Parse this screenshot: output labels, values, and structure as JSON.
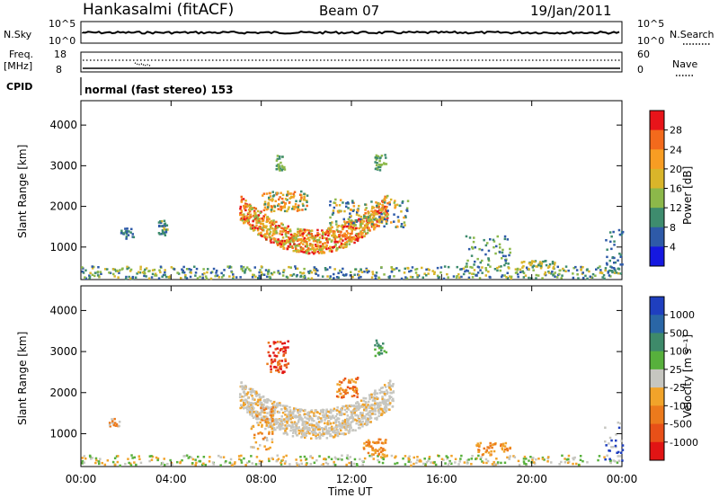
{
  "header": {
    "station": "Hankasalmi (fitACF)",
    "beam": "Beam 07",
    "date": "19/Jan/2011"
  },
  "top_panels": {
    "nsky_label": "N.Sky",
    "nsky_ticks": [
      "10^5",
      "10^0"
    ],
    "nsearch_label": "N.Search",
    "nsearch_ticks": [
      "10^5",
      "10^0"
    ],
    "freq_label_1": "Freq.",
    "freq_label_2": "[MHz]",
    "freq_ticks": [
      "18",
      "8"
    ],
    "nave_label": "Nave",
    "nave_ticks": [
      "60",
      "0"
    ],
    "cpid_label": "CPID",
    "cpid_value": "normal (fast stereo) 153"
  },
  "chart_data": [
    {
      "type": "heatmap",
      "name": "power",
      "ylabel": "Slant Range [km]",
      "yticks": [
        1000,
        2000,
        3000,
        4000
      ],
      "ylim": [
        200,
        4600
      ],
      "xticks": [
        "00:00",
        "04:00",
        "08:00",
        "12:00",
        "16:00",
        "20:00",
        "00:00"
      ],
      "xlim_hours": [
        0,
        24
      ],
      "colorbar": {
        "label": "Power [dB]",
        "ticks": [
          "28",
          "24",
          "20",
          "16",
          "12",
          "8",
          "4"
        ],
        "colors": [
          "#e8141a",
          "#f36a1c",
          "#f89d23",
          "#d9b52a",
          "#8cb84a",
          "#3e8c6e",
          "#2e5aa8",
          "#1518e0"
        ]
      }
    },
    {
      "type": "heatmap",
      "name": "velocity",
      "ylabel": "Slant Range [km]",
      "yticks": [
        1000,
        2000,
        3000,
        4000
      ],
      "ylim": [
        200,
        4600
      ],
      "xticks": [
        "00:00",
        "04:00",
        "08:00",
        "12:00",
        "16:00",
        "20:00",
        "00:00"
      ],
      "xlabel": "Time UT",
      "colorbar": {
        "label": "Velocity [m s⁻¹]",
        "ticks": [
          "1000",
          "500",
          "100",
          "25",
          "-25",
          "-100",
          "-500",
          "-1000"
        ],
        "colors": [
          "#1f3fbf",
          "#2a66a6",
          "#3e8a6a",
          "#57b03c",
          "#c6c6c0",
          "#f1a32a",
          "#ec7a1c",
          "#e85018",
          "#e11414"
        ]
      }
    }
  ]
}
